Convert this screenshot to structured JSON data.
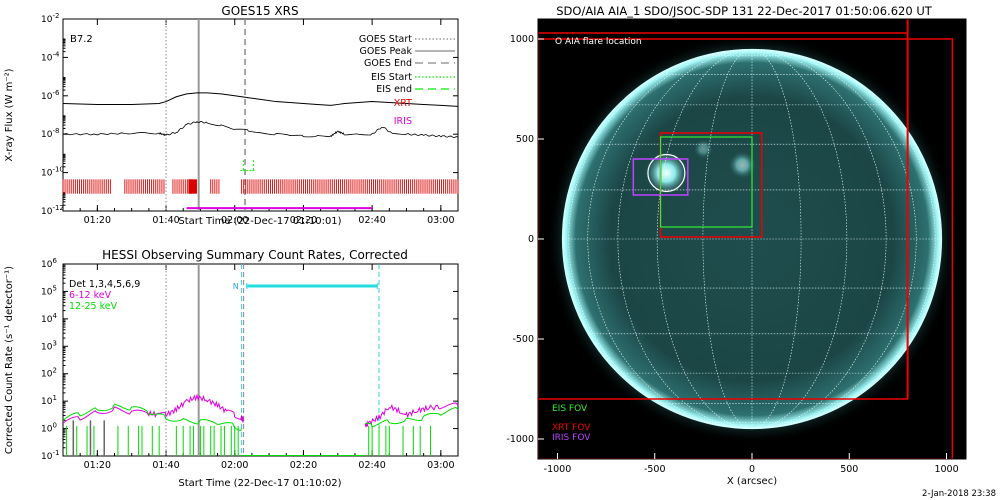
{
  "footer": {
    "timestamp": "2-Jan-2018 23:38"
  },
  "chart_data": [
    {
      "id": "goes",
      "type": "line",
      "title": "GOES15 XRS",
      "xlabel": "Start Time (22-Dec-17 01:10:01)",
      "ylabel": "X-ray Flux (W m⁻²)",
      "yscale": "log",
      "ylim_exp": [
        -12,
        -2
      ],
      "ytick_exps": [
        -12,
        -10,
        -8,
        -6,
        -4,
        -2
      ],
      "xlim_min": [
        0,
        115
      ],
      "xticks": [
        {
          "min": 10,
          "label": "01:20"
        },
        {
          "min": 30,
          "label": "01:40"
        },
        {
          "min": 50,
          "label": "02:00"
        },
        {
          "min": 70,
          "label": "02:20"
        },
        {
          "min": 90,
          "label": "02:40"
        },
        {
          "min": 110,
          "label": "03:00"
        }
      ],
      "class_label": "B7.2",
      "markers": {
        "goes_start": 30,
        "goes_peak": 39.5,
        "goes_end": 53
      },
      "long_channel": {
        "x": [
          0,
          10,
          20,
          28,
          30,
          33,
          36,
          39,
          42,
          46,
          50,
          54,
          58,
          62,
          66,
          70,
          74,
          78,
          80,
          82,
          86,
          90,
          95,
          100,
          105,
          110,
          115
        ],
        "y_exp": [
          -6.4,
          -6.45,
          -6.45,
          -6.4,
          -6.3,
          -6.05,
          -5.9,
          -5.85,
          -5.85,
          -5.9,
          -6.0,
          -6.1,
          -6.2,
          -6.3,
          -6.35,
          -6.4,
          -6.45,
          -6.5,
          -6.45,
          -6.4,
          -6.35,
          -6.3,
          -6.35,
          -6.4,
          -6.45,
          -6.5,
          -6.55
        ]
      },
      "short_channel": {
        "x": [
          0,
          10,
          20,
          28,
          30,
          33,
          36,
          39,
          42,
          46,
          50,
          54,
          58,
          62,
          66,
          70,
          74,
          78,
          80,
          82,
          86,
          90,
          93,
          96,
          100,
          105,
          110,
          115
        ],
        "y_exp": [
          -8.0,
          -8.0,
          -7.95,
          -7.95,
          -8.05,
          -7.9,
          -7.5,
          -7.35,
          -7.4,
          -7.55,
          -7.75,
          -7.8,
          -7.95,
          -8.0,
          -8.05,
          -8.1,
          -8.1,
          -8.1,
          -7.85,
          -8.0,
          -8.0,
          -8.0,
          -7.6,
          -8.0,
          -8.0,
          -8.05,
          -8.1,
          -8.15
        ]
      },
      "legend": [
        {
          "label": "GOES Start",
          "style": "dotted",
          "color": "#888888"
        },
        {
          "label": "GOES Peak",
          "style": "solid",
          "color": "#888888"
        },
        {
          "label": "GOES End",
          "style": "dashed",
          "color": "#888888"
        },
        {
          "label": "EIS Start",
          "style": "dotted",
          "color": "#00ee00"
        },
        {
          "label": "EIS end",
          "style": "dashed",
          "color": "#00ee00"
        },
        {
          "label": "XRT",
          "style": "text",
          "color": "#ee0000"
        },
        {
          "label": "IRIS",
          "style": "text",
          "color": "#dd00dd"
        }
      ],
      "xrt_segments": [
        [
          0,
          14
        ],
        [
          18,
          30
        ],
        [
          32,
          38
        ],
        [
          43,
          46
        ],
        [
          52,
          115
        ]
      ],
      "iris_range": [
        36,
        90
      ],
      "eis_ticks": [
        52.5,
        55.5
      ]
    },
    {
      "id": "hessi",
      "type": "line",
      "title": "HESSI Observing Summary Count Rates, Corrected",
      "xlabel": "Start Time (22-Dec-17 01:10:02)",
      "ylabel": "Corrected Count Rate (s⁻¹ detector⁻¹)",
      "yscale": "log",
      "ylim_exp": [
        -1,
        6
      ],
      "ytick_exps": [
        -1,
        0,
        1,
        2,
        3,
        4,
        5,
        6
      ],
      "xlim_min": [
        0,
        115
      ],
      "xticks": [
        {
          "min": 10,
          "label": "01:20"
        },
        {
          "min": 30,
          "label": "01:40"
        },
        {
          "min": 50,
          "label": "02:00"
        },
        {
          "min": 70,
          "label": "02:20"
        },
        {
          "min": 90,
          "label": "02:40"
        },
        {
          "min": 110,
          "label": "03:00"
        }
      ],
      "legend": [
        {
          "label": "Det 1,3,4,5,6,9",
          "color": "#000000"
        },
        {
          "label": "6-12 keV",
          "color": "#dd00dd"
        },
        {
          "label": "12-25 keV",
          "color": "#00dd00"
        }
      ],
      "markers": {
        "dotted": 30,
        "solid": 39.5,
        "dashed_cyan": [
          52,
          92
        ]
      },
      "night_flag": {
        "label": "N",
        "x0": 53.5,
        "x1": 91.5,
        "y_exp": 5.2
      },
      "series": [
        {
          "name": "6-12 keV",
          "x": [
            0,
            5,
            10,
            15,
            20,
            25,
            28,
            30,
            33,
            36,
            39,
            42,
            45,
            48,
            50,
            52,
            52.5
          ],
          "y_exp": [
            0.2,
            0.4,
            0.6,
            0.7,
            0.6,
            0.55,
            0.5,
            0.5,
            0.7,
            1.0,
            1.15,
            1.05,
            0.85,
            0.6,
            0.5,
            0.4,
            0.3
          ]
        },
        {
          "name": "6-12 keV",
          "x": [
            88,
            89,
            92,
            95,
            98,
            100,
            103,
            106,
            110,
            115
          ],
          "y_exp": [
            0.1,
            0.2,
            0.4,
            0.8,
            0.65,
            0.5,
            0.65,
            0.75,
            0.8,
            0.85
          ]
        },
        {
          "name": "12-25 keV",
          "x": [
            0,
            5,
            10,
            15,
            20,
            25,
            30,
            35,
            40,
            45,
            50,
            52
          ],
          "y_exp": [
            0.3,
            0.55,
            0.7,
            0.8,
            0.75,
            0.6,
            0.4,
            0.3,
            0.25,
            0.2,
            0.1,
            0.0
          ]
        },
        {
          "name": "12-25 keV",
          "x": [
            88,
            90,
            95,
            100,
            105,
            110,
            115
          ],
          "y_exp": [
            0.1,
            0.15,
            0.25,
            0.3,
            0.4,
            0.55,
            0.7
          ]
        }
      ],
      "dropouts": [
        1,
        4,
        7,
        9,
        16,
        19,
        22,
        23,
        26,
        28,
        33,
        35,
        37,
        38,
        40,
        41,
        43,
        44,
        46,
        47,
        49,
        50,
        51,
        89,
        90,
        92,
        94,
        95,
        99,
        102,
        104,
        107
      ]
    },
    {
      "id": "aia",
      "type": "image",
      "title": "SDO/AIA AIA_1 SDO/JSOC-SDP 131 22-Dec-2017 01:50:06.620 UT",
      "xlabel": "X (arcsec)",
      "xlim": [
        -1100,
        1100
      ],
      "ylim": [
        -1100,
        1100
      ],
      "xticks": [
        -1000,
        -500,
        0,
        500,
        1000
      ],
      "yticks": [
        -1000,
        -500,
        0,
        500,
        1000
      ],
      "solar_radius_arcsec": 975,
      "flare_location": {
        "x": -440,
        "y": 330,
        "r": 95
      },
      "flare_label": "O AIA flare location",
      "fov_legend": [
        {
          "label": "EIS FOV",
          "color": "#33ee33"
        },
        {
          "label": "XRT FOV",
          "color": "#ee0000"
        },
        {
          "label": "IRIS FOV",
          "color": "#bb44ff"
        }
      ],
      "xrt_fov_big": [
        -1100,
        -800,
        800,
        1030
      ],
      "xrt_fov_small": [
        -470,
        10,
        50,
        530
      ],
      "eis_fov": [
        -470,
        60,
        0,
        510
      ],
      "iris_fov": [
        -610,
        220,
        -330,
        400
      ],
      "xrt_fov_outer": [
        -1100,
        1000,
        1030,
        -1100
      ],
      "meridian_line_x": 800
    }
  ]
}
